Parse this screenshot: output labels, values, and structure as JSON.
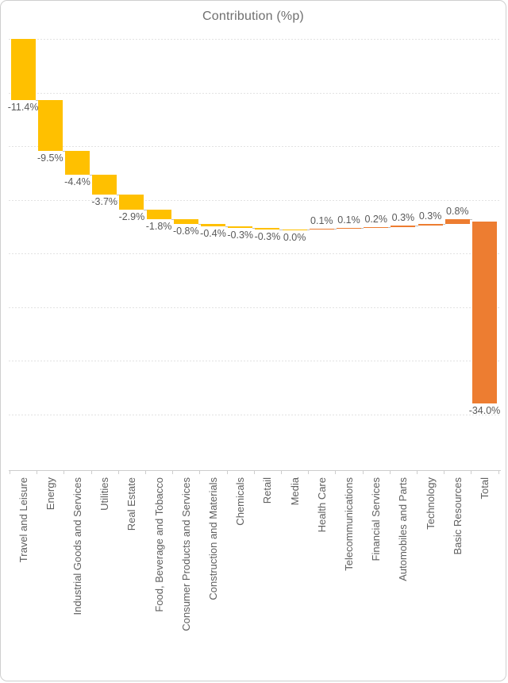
{
  "title": "Contribution (%p)",
  "chart_data": {
    "type": "waterfall",
    "title": "Contribution (%p)",
    "categories": [
      "Travel and Leisure",
      "Energy",
      "Industrial Goods and Services",
      "Utilities",
      "Real Estate",
      "Food, Beverage and Tobacco",
      "Consumer Products and Services",
      "Construction and Materials",
      "Chemicals",
      "Retail",
      "Media",
      "Health Care",
      "Telecommunications",
      "Financial Services",
      "Automobiles and Parts",
      "Technology",
      "Basic Resources",
      "Total"
    ],
    "values": [
      -11.4,
      -9.5,
      -4.4,
      -3.7,
      -2.9,
      -1.8,
      -0.8,
      -0.4,
      -0.3,
      -0.3,
      0.0,
      0.1,
      0.1,
      0.2,
      0.3,
      0.3,
      0.8,
      -34.0
    ],
    "labels": [
      "-11.4%",
      "-9.5%",
      "-4.4%",
      "-3.7%",
      "-2.9%",
      "-1.8%",
      "-0.8%",
      "-0.4%",
      "-0.3%",
      "-0.3%",
      "0.0%",
      "0.1%",
      "0.1%",
      "0.2%",
      "0.3%",
      "0.3%",
      "0.8%",
      "-34.0%"
    ],
    "total_index": 17,
    "total_value": -34.0,
    "ylim": [
      -80,
      0
    ],
    "gridline_step_pct": 10,
    "grid": true,
    "legend": "none",
    "colors": {
      "negative_bar": "#FFC000",
      "positive_bar": "#ED7D31",
      "total_bar": "#ED7D31",
      "connector": "#BFBFBF",
      "gridline": "#E2E2E2",
      "axis": "#CDCDCD",
      "title_text": "#6F6F6F",
      "value_label_text": "#595959",
      "category_label_text": "#606060"
    }
  }
}
